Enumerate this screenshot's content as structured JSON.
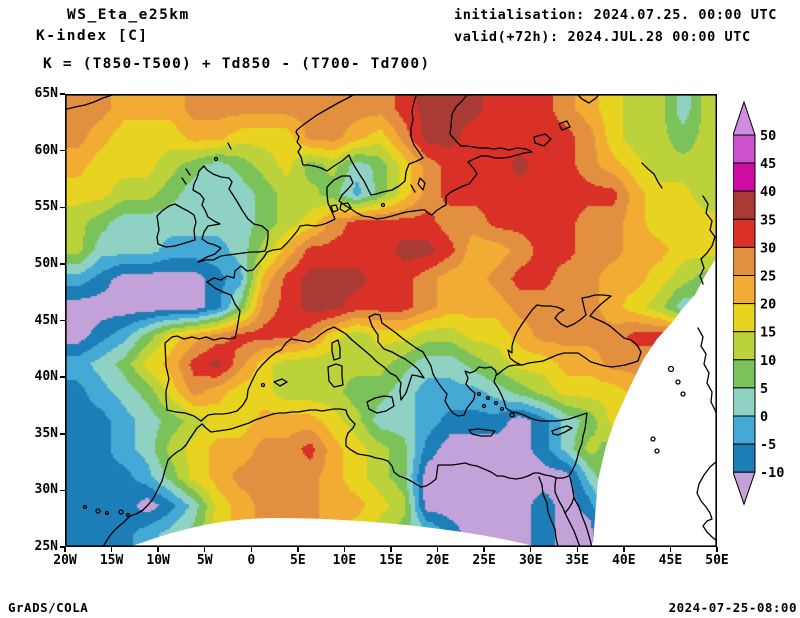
{
  "header": {
    "model_title": "WS_Eta_e25km",
    "variable_title": "K-index [C]",
    "formula": "K = (T850-T500) + Td850 - (T700- Td700)",
    "init": "initialisation: 2024.07.25. 00:00 UTC",
    "valid": "valid(+72h): 2024.JUL.28 00:00 UTC"
  },
  "footer": {
    "left": "GrADS/COLA",
    "right": "2024-07-25-08:00"
  },
  "chart_data": {
    "type": "heatmap",
    "title": "K-index [C]",
    "x_axis": {
      "label": "longitude",
      "range": [
        -20,
        50
      ],
      "ticks": [
        "20W",
        "15W",
        "10W",
        "5W",
        "0",
        "5E",
        "10E",
        "15E",
        "20E",
        "25E",
        "30E",
        "35E",
        "40E",
        "45E",
        "50E"
      ]
    },
    "y_axis": {
      "label": "latitude",
      "range": [
        25,
        65
      ],
      "ticks": [
        "65N",
        "60N",
        "55N",
        "50N",
        "45N",
        "40N",
        "35N",
        "30N",
        "25N"
      ]
    },
    "levels": [
      -10,
      -5,
      0,
      5,
      10,
      15,
      20,
      25,
      30,
      35,
      40,
      45,
      50
    ],
    "palette": [
      "#c2a2d8",
      "#1d7db6",
      "#44aad5",
      "#8fd2c4",
      "#7cc25b",
      "#bcd23a",
      "#e8d321",
      "#f3ac33",
      "#e29040",
      "#d93128",
      "#a93b34",
      "#ce0ca3",
      "#cd52cd",
      "#cf8fe0"
    ],
    "grid": {
      "lon_start": -18.75,
      "lat_start": 63.75,
      "step_deg": 2.5
    },
    "values": [
      [
        27,
        27,
        22,
        22,
        22,
        27,
        27,
        27,
        27,
        27,
        27,
        27,
        27,
        27,
        32,
        37,
        37,
        37,
        32,
        32,
        32,
        27,
        22,
        17,
        12,
        12,
        2,
        12
      ],
      [
        27,
        22,
        17,
        17,
        17,
        22,
        22,
        17,
        17,
        17,
        27,
        27,
        22,
        17,
        27,
        37,
        37,
        32,
        32,
        32,
        32,
        32,
        27,
        17,
        12,
        12,
        7,
        12
      ],
      [
        22,
        17,
        17,
        17,
        12,
        7,
        2,
        7,
        12,
        17,
        7,
        12,
        2,
        7,
        17,
        27,
        32,
        32,
        32,
        37,
        32,
        32,
        27,
        22,
        17,
        12,
        12,
        12
      ],
      [
        17,
        17,
        12,
        12,
        7,
        2,
        2,
        2,
        7,
        12,
        12,
        7,
        -2,
        7,
        17,
        27,
        32,
        32,
        32,
        32,
        32,
        32,
        32,
        32,
        22,
        17,
        17,
        12
      ],
      [
        12,
        7,
        2,
        2,
        2,
        2,
        2,
        2,
        7,
        12,
        17,
        27,
        32,
        32,
        32,
        32,
        27,
        27,
        32,
        32,
        32,
        32,
        27,
        27,
        22,
        17,
        17,
        17
      ],
      [
        12,
        2,
        2,
        2,
        -2,
        -2,
        -2,
        2,
        12,
        22,
        32,
        32,
        32,
        32,
        37,
        37,
        32,
        22,
        22,
        27,
        32,
        32,
        27,
        27,
        22,
        22,
        17,
        17
      ],
      [
        -2,
        -7,
        -13,
        -13,
        -13,
        -13,
        -7,
        -2,
        22,
        32,
        37,
        37,
        37,
        32,
        32,
        27,
        22,
        22,
        27,
        32,
        32,
        27,
        27,
        22,
        22,
        17,
        12,
        7
      ],
      [
        -13,
        -13,
        -13,
        -13,
        -13,
        -13,
        -7,
        7,
        27,
        32,
        37,
        37,
        32,
        32,
        32,
        27,
        22,
        22,
        22,
        27,
        27,
        27,
        27,
        22,
        17,
        12,
        2,
        2
      ],
      [
        -13,
        -7,
        -2,
        7,
        17,
        22,
        27,
        32,
        32,
        32,
        27,
        17,
        12,
        17,
        17,
        12,
        12,
        17,
        17,
        22,
        27,
        27,
        27,
        27,
        32,
        32,
        32,
        32
      ],
      [
        -2,
        2,
        7,
        17,
        22,
        32,
        37,
        27,
        17,
        12,
        12,
        12,
        12,
        12,
        7,
        2,
        2,
        7,
        12,
        17,
        17,
        22,
        22,
        27,
        27,
        27,
        27,
        27
      ],
      [
        -7,
        -2,
        2,
        7,
        17,
        27,
        22,
        17,
        17,
        12,
        12,
        12,
        7,
        7,
        2,
        -2,
        -2,
        -2,
        2,
        7,
        12,
        17,
        17,
        17,
        22,
        22,
        22,
        22
      ],
      [
        -7,
        -7,
        -2,
        2,
        7,
        12,
        17,
        17,
        22,
        22,
        22,
        17,
        12,
        2,
        2,
        -2,
        -7,
        -7,
        -7,
        -13,
        -7,
        2,
        7,
        17,
        12,
        12,
        12,
        12
      ],
      [
        -7,
        -7,
        -2,
        2,
        12,
        17,
        22,
        22,
        27,
        27,
        32,
        22,
        17,
        12,
        7,
        -7,
        -13,
        -13,
        -13,
        -13,
        -7,
        2,
        12,
        7,
        7,
        7,
        7,
        7
      ],
      [
        -7,
        -7,
        -7,
        -2,
        7,
        17,
        22,
        27,
        27,
        27,
        27,
        22,
        17,
        12,
        7,
        -13,
        -13,
        -13,
        -13,
        -13,
        -13,
        -13,
        2,
        12,
        12,
        12,
        12,
        12
      ],
      [
        -7,
        -7,
        -7,
        -13,
        -7,
        2,
        17,
        22,
        27,
        27,
        27,
        22,
        22,
        17,
        12,
        -13,
        -13,
        -13,
        -13,
        -13,
        -7,
        -13,
        -7,
        7,
        7,
        7,
        7,
        7
      ],
      [
        -7,
        -7,
        -7,
        -2,
        2,
        7,
        17,
        22,
        27,
        32,
        27,
        22,
        17,
        12,
        7,
        2,
        -7,
        -13,
        -13,
        -13,
        -7,
        -13,
        -13,
        7,
        7,
        7,
        7,
        7
      ]
    ]
  },
  "colorbar": {
    "labels": [
      "50",
      "45",
      "40",
      "35",
      "30",
      "25",
      "20",
      "15",
      "10",
      "5",
      "0",
      "-5",
      "-10"
    ]
  }
}
